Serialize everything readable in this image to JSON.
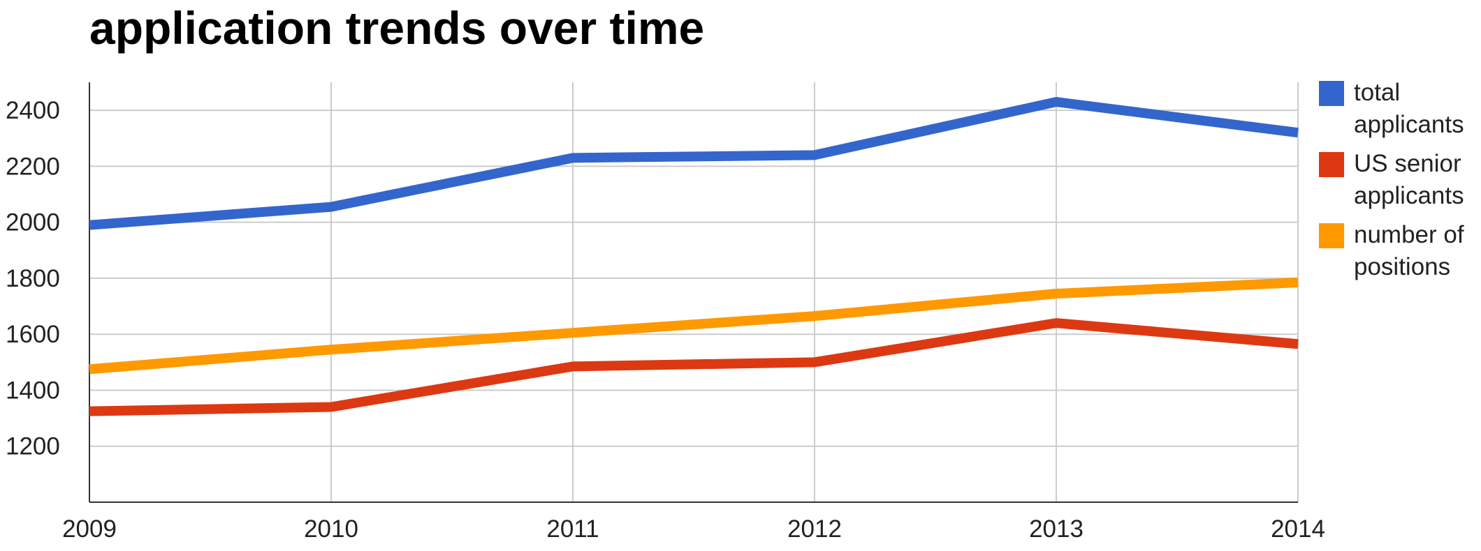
{
  "chart_data": {
    "type": "line",
    "title": "application trends over time",
    "xlabel": "",
    "ylabel": "",
    "categories": [
      "2009",
      "2010",
      "2011",
      "2012",
      "2013",
      "2014"
    ],
    "series": [
      {
        "name": "total applicants",
        "color": "#3366cc",
        "values": [
          1990,
          2055,
          2230,
          2240,
          2430,
          2320
        ]
      },
      {
        "name": "US senior applicants",
        "color": "#dc3912",
        "values": [
          1325,
          1340,
          1485,
          1500,
          1640,
          1565
        ]
      },
      {
        "name": "number of positions",
        "color": "#ff9900",
        "values": [
          1475,
          1545,
          1605,
          1665,
          1745,
          1785
        ]
      }
    ],
    "ylim": [
      1000,
      2500
    ],
    "yticks": [
      "1200",
      "1400",
      "1600",
      "1800",
      "2000",
      "2200",
      "2400"
    ],
    "grid": true,
    "legend_position": "right"
  }
}
